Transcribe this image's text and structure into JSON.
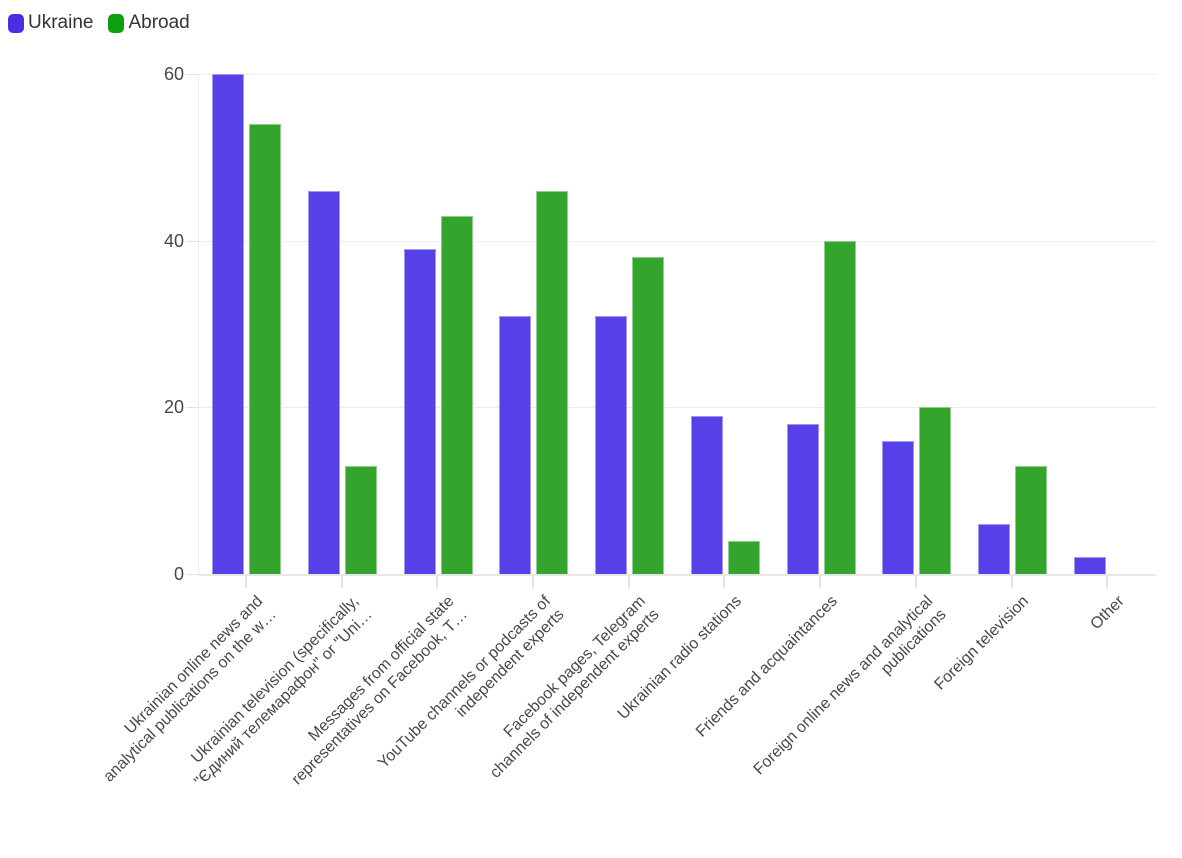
{
  "legend": {
    "items": [
      {
        "label": "Ukraine",
        "color": "#4b2ee2"
      },
      {
        "label": "Abroad",
        "color": "#0d9f0d"
      }
    ]
  },
  "y_axis": {
    "tick_labels": [
      "0",
      "20",
      "40",
      "60"
    ]
  },
  "chart_data": {
    "type": "bar",
    "title": "",
    "xlabel": "",
    "ylabel": "",
    "categories": [
      "Ukrainian online news and\nanalytical publications on the w…",
      "Ukrainian television (specifically,\n\"Єдиний телемарафон\" or \"Uni…",
      "Messages from official state\nrepresentatives on Facebook, T…",
      "YouTube channels or podcasts of\nindependent experts",
      "Facebook pages, Telegram\nchannels of independent experts",
      "Ukrainian radio stations",
      "Friends and acquaintances",
      "Foreign online news and analytical\npublications",
      "Foreign television",
      "Other"
    ],
    "series": [
      {
        "name": "Ukraine",
        "color": "#5640e8",
        "values": [
          60,
          46,
          39,
          31,
          31,
          19,
          18,
          16,
          6,
          2
        ]
      },
      {
        "name": "Abroad",
        "color": "#33a52c",
        "values": [
          54,
          13,
          43,
          46,
          38,
          4,
          40,
          20,
          13,
          0
        ]
      }
    ],
    "ylim": [
      0,
      60
    ],
    "yticks": [
      0,
      20,
      40,
      60
    ],
    "grid": "horizontal",
    "legend_position": "top-left",
    "x_tick_angle": -45
  }
}
